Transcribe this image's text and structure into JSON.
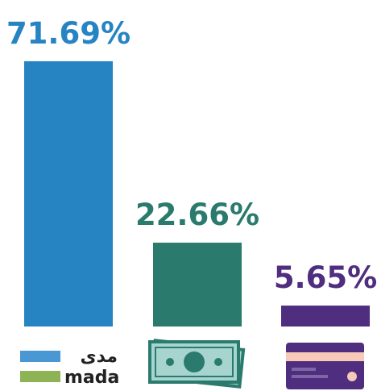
{
  "chart_data": {
    "type": "bar",
    "categories": [
      null,
      null,
      null
    ],
    "values": [
      71.69,
      22.66,
      5.65
    ],
    "value_labels": [
      "71.69%",
      "22.66%",
      "5.65%"
    ],
    "colors": [
      "#2784c3",
      "#2a7b6d",
      "#4f2d7f"
    ],
    "annotations": [
      {
        "text": "مدى"
      },
      {
        "text": "mada"
      }
    ]
  }
}
